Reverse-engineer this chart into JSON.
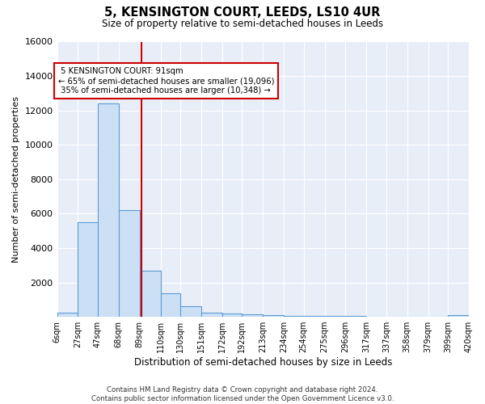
{
  "title": "5, KENSINGTON COURT, LEEDS, LS10 4UR",
  "subtitle": "Size of property relative to semi-detached houses in Leeds",
  "xlabel": "Distribution of semi-detached houses by size in Leeds",
  "ylabel": "Number of semi-detached properties",
  "footer": "Contains HM Land Registry data © Crown copyright and database right 2024.\nContains public sector information licensed under the Open Government Licence v3.0.",
  "property_label": "5 KENSINGTON COURT: 91sqm",
  "pct_smaller": "65% of semi-detached houses are smaller (19,096)",
  "pct_larger": "35% of semi-detached houses are larger (10,348)",
  "property_sqm": 91,
  "bar_edges": [
    6,
    27,
    47,
    68,
    89,
    110,
    130,
    151,
    172,
    192,
    213,
    234,
    254,
    275,
    296,
    317,
    337,
    358,
    379,
    399,
    420
  ],
  "bar_heights": [
    250,
    5500,
    12400,
    6200,
    2700,
    1380,
    600,
    250,
    175,
    130,
    80,
    60,
    50,
    40,
    30,
    25,
    20,
    15,
    10,
    110
  ],
  "bar_color": "#cce0f5",
  "bar_edge_color": "#5b9bd5",
  "vline_color": "#cc0000",
  "annotation_box_color": "#cc0000",
  "background_color": "#e8eef7",
  "ylim": [
    0,
    16000
  ],
  "yticks": [
    0,
    2000,
    4000,
    6000,
    8000,
    10000,
    12000,
    14000,
    16000
  ],
  "tick_labels": [
    "6sqm",
    "27sqm",
    "47sqm",
    "68sqm",
    "89sqm",
    "110sqm",
    "130sqm",
    "151sqm",
    "172sqm",
    "192sqm",
    "213sqm",
    "234sqm",
    "254sqm",
    "275sqm",
    "296sqm",
    "317sqm",
    "337sqm",
    "358sqm",
    "379sqm",
    "399sqm",
    "420sqm"
  ]
}
